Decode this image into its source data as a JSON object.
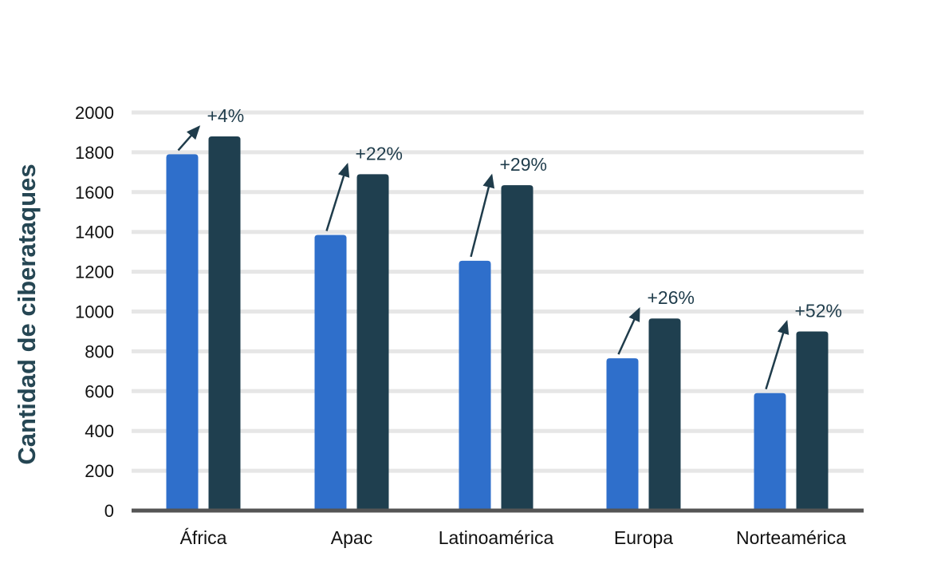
{
  "colors": {
    "series_a": "#2f6fcb",
    "series_b": "#1f3f4f",
    "grid": "#e6e6e6",
    "baseline": "#555555",
    "annotation": "#1f3c4b",
    "ylabel": "#254653"
  },
  "chart_data": {
    "type": "bar",
    "title": "",
    "xlabel": "",
    "ylabel": "Cantidad de ciberataques",
    "ylim": [
      0,
      2000
    ],
    "yticks": [
      0,
      200,
      400,
      600,
      800,
      1000,
      1200,
      1400,
      1600,
      1800,
      2000
    ],
    "grid": true,
    "legend": "none",
    "categories": [
      "África",
      "Apac",
      "Latinoamérica",
      "Europa",
      "Norteamérica"
    ],
    "series": [
      {
        "values": [
          1790,
          1385,
          1255,
          765,
          590
        ]
      },
      {
        "values": [
          1880,
          1690,
          1635,
          965,
          900
        ]
      }
    ],
    "annotations": [
      "+4%",
      "+22%",
      "+29%",
      "+26%",
      "+52%"
    ]
  }
}
